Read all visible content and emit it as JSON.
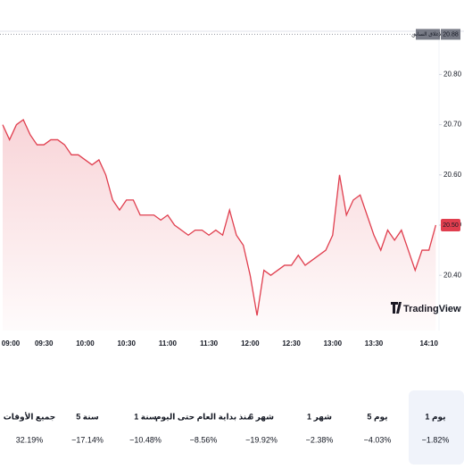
{
  "chart_data": {
    "type": "line",
    "x": [
      "09:00",
      "09:05",
      "09:10",
      "09:15",
      "09:20",
      "09:25",
      "09:30",
      "09:35",
      "09:40",
      "09:45",
      "09:50",
      "09:55",
      "10:00",
      "10:05",
      "10:10",
      "10:15",
      "10:20",
      "10:25",
      "10:30",
      "10:35",
      "10:40",
      "10:45",
      "10:50",
      "10:55",
      "11:00",
      "11:05",
      "11:10",
      "11:15",
      "11:20",
      "11:25",
      "11:30",
      "11:35",
      "11:40",
      "11:45",
      "11:50",
      "11:55",
      "12:00",
      "12:05",
      "12:10",
      "12:15",
      "12:20",
      "12:25",
      "12:30",
      "12:35",
      "12:40",
      "12:45",
      "12:50",
      "12:55",
      "13:00",
      "13:05",
      "13:10",
      "13:15",
      "13:20",
      "13:25",
      "13:30",
      "13:35",
      "13:40",
      "13:45",
      "13:50",
      "13:55",
      "14:00",
      "14:05",
      "14:10",
      "14:15"
    ],
    "series": [
      {
        "color": "#e03e4e",
        "values": [
          20.7,
          20.67,
          20.7,
          20.71,
          20.68,
          20.66,
          20.66,
          20.67,
          20.67,
          20.66,
          20.64,
          20.64,
          20.63,
          20.62,
          20.63,
          20.6,
          20.55,
          20.53,
          20.55,
          20.55,
          20.52,
          20.52,
          20.52,
          20.51,
          20.52,
          20.5,
          20.49,
          20.48,
          20.49,
          20.49,
          20.48,
          20.49,
          20.48,
          20.53,
          20.48,
          20.46,
          20.4,
          20.32,
          20.41,
          20.4,
          20.41,
          20.42,
          20.42,
          20.44,
          20.42,
          20.43,
          20.44,
          20.45,
          20.48,
          20.6,
          20.52,
          20.55,
          20.56,
          20.52,
          20.48,
          20.45,
          20.49,
          20.47,
          20.49,
          20.45,
          20.41,
          20.45,
          20.45,
          20.5
        ]
      }
    ],
    "xlim": [
      "09:00",
      "14:18"
    ],
    "xticks": [
      "09:00",
      "09:30",
      "10:00",
      "10:30",
      "11:00",
      "11:30",
      "12:00",
      "12:30",
      "13:00",
      "13:30",
      "14:10"
    ],
    "ylim": [
      20.29,
      20.895
    ],
    "yticks": [
      {
        "value": 20.4,
        "label": "20.40"
      },
      {
        "value": 20.5,
        "label": "20.50"
      },
      {
        "value": 20.6,
        "label": "20.60"
      },
      {
        "value": 20.7,
        "label": "20.70"
      },
      {
        "value": 20.8,
        "label": "20.80"
      }
    ],
    "last_price": {
      "value": 20.5,
      "label": "20.50",
      "color": "#e03e4e"
    },
    "prev_close": {
      "value": 20.88,
      "label": "20.88",
      "text": "الإغلاق السابق"
    },
    "brand": "TradingView"
  },
  "periods": [
    {
      "label": "1 يوم",
      "change": "−1.82%",
      "color": "#e03e4e",
      "selected": true
    },
    {
      "label": "5 يوم",
      "change": "−4.03%",
      "color": "#e03e4e"
    },
    {
      "label": "1 شهر",
      "change": "−2.38%",
      "color": "#e03e4e"
    },
    {
      "label": "6 شهر",
      "change": "−19.92%",
      "color": "#e03e4e"
    },
    {
      "label": "منذ بداية العام حتى اليوم",
      "change": "−8.56%",
      "color": "#e03e4e"
    },
    {
      "label": "1 سنة",
      "change": "−10.48%",
      "color": "#e03e4e"
    },
    {
      "label": "5 سنة",
      "change": "−17.14%",
      "color": "#e03e4e"
    },
    {
      "label": "جميع الأوقات",
      "change": "32.19%",
      "color": "#089981"
    }
  ]
}
